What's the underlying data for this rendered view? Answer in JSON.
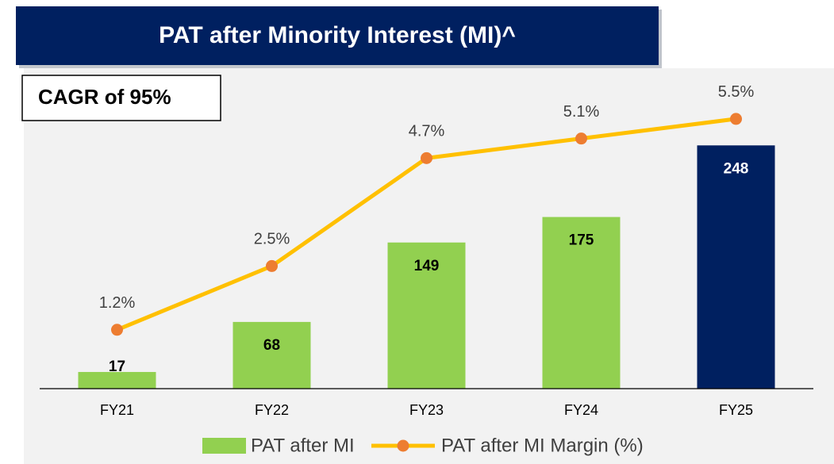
{
  "chart_data": {
    "type": "bar-line",
    "title": "PAT after Minority Interest (MI)^",
    "annotation": "CAGR of 95%",
    "categories": [
      "FY21",
      "FY22",
      "FY23",
      "FY24",
      "FY25"
    ],
    "series": [
      {
        "name": "PAT after MI",
        "type": "bar",
        "color": "#92d050",
        "colors": [
          "#92d050",
          "#92d050",
          "#92d050",
          "#92d050",
          "#002060"
        ],
        "values": [
          17,
          68,
          149,
          175,
          248
        ]
      },
      {
        "name": "PAT after MI Margin (%)",
        "type": "line",
        "axis": "y2",
        "color": "#ffc000",
        "marker_color": "#ed7d31",
        "values": [
          1.2,
          2.5,
          4.7,
          5.1,
          5.5
        ],
        "value_labels": [
          "1.2%",
          "2.5%",
          "4.7%",
          "5.1%",
          "5.5%"
        ]
      }
    ],
    "ylim": [
      0,
      300
    ],
    "y2lim": [
      0,
      6
    ],
    "legend": "bottom"
  }
}
